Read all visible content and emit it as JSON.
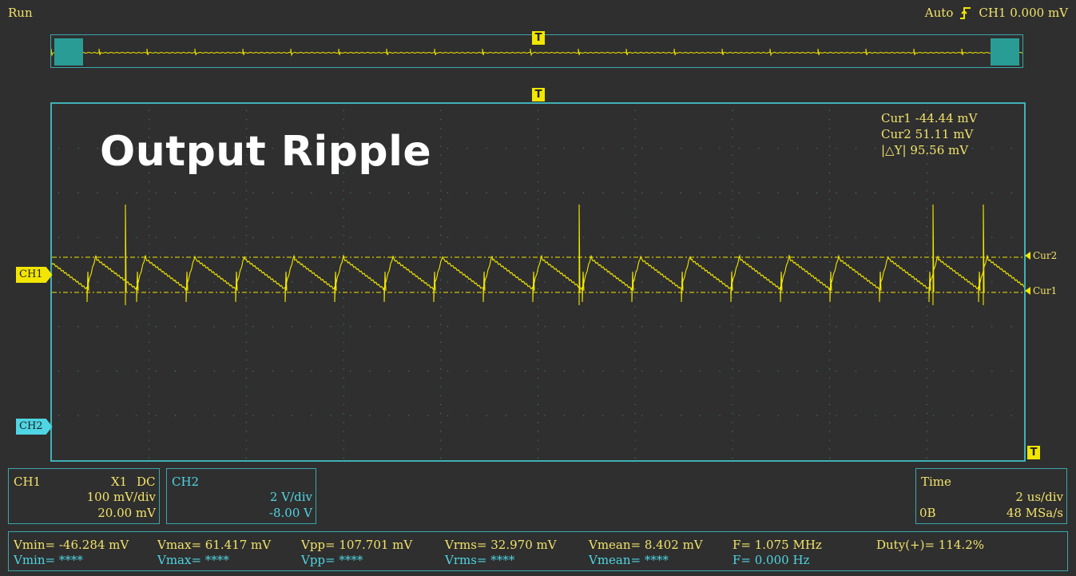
{
  "status": {
    "run": "Run"
  },
  "trigger": {
    "mode": "Auto",
    "source_level": "CH1 0.000 mV",
    "edge_icon": "rising-edge-icon"
  },
  "markers": {
    "trigger": "T"
  },
  "overlay_title": "Output Ripple",
  "cursors": {
    "cur1": "Cur1  -44.44 mV",
    "cur2": "Cur2  51.11 mV",
    "delta": "|△Y|  95.56 mV",
    "cur1_tag": "Cur1",
    "cur2_tag": "Cur2"
  },
  "channel_tags": {
    "ch1": "CH1",
    "ch2": "CH2"
  },
  "ch1_panel": {
    "name": "CH1",
    "probe": "X1",
    "coupling": "DC",
    "scale": "100 mV/div",
    "offset": "20.00 mV"
  },
  "ch2_panel": {
    "name": "CH2",
    "scale": "2 V/div",
    "offset": "-8.00 V"
  },
  "time_panel": {
    "name": "Time",
    "scale": "2 us/div",
    "position": "0B",
    "sample_rate": "48 MSa/s"
  },
  "measurements": {
    "ch1": [
      "Vmin= -46.284 mV",
      "Vmax= 61.417 mV",
      "Vpp= 107.701 mV",
      "Vrms= 32.970 mV",
      "Vmean= 8.402 mV",
      "F= 1.075 MHz",
      "Duty(+)= 114.2%"
    ],
    "ch2": [
      "Vmin= ****",
      "Vmax= ****",
      "Vpp= ****",
      "Vrms= ****",
      "Vmean= ****",
      "F= 0.000 Hz"
    ]
  },
  "colors": {
    "ch1": "#f2e600",
    "ch2": "#4fd5e3",
    "grid_border": "#3fb1b6",
    "background": "#2f2f2f"
  }
}
